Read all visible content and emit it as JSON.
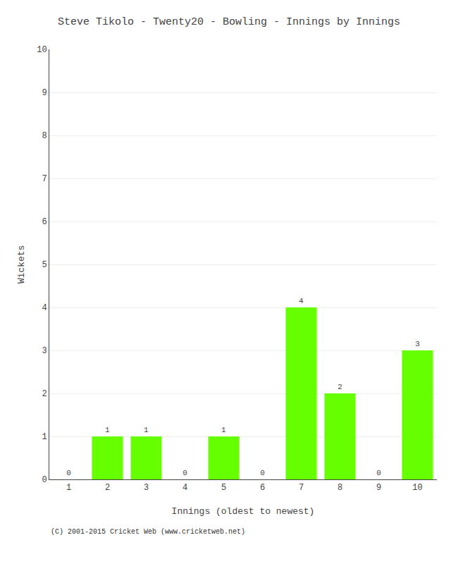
{
  "chart_data": {
    "type": "bar",
    "title": "Steve Tikolo - Twenty20 - Bowling - Innings by Innings",
    "xlabel": "Innings (oldest to newest)",
    "ylabel": "Wickets",
    "categories": [
      "1",
      "2",
      "3",
      "4",
      "5",
      "6",
      "7",
      "8",
      "9",
      "10"
    ],
    "values": [
      0,
      1,
      1,
      0,
      1,
      0,
      4,
      2,
      0,
      3
    ],
    "color": "#66ff00",
    "ylim": [
      0,
      10
    ],
    "yticks": [
      0,
      1,
      2,
      3,
      4,
      5,
      6,
      7,
      8,
      9,
      10
    ],
    "grid": true,
    "data_labels": true,
    "annotations": [
      "(C) 2001-2015 Cricket Web (www.cricketweb.net)"
    ]
  }
}
